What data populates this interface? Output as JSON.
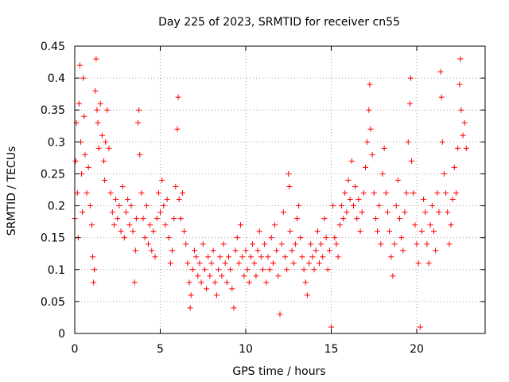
{
  "chart_data": {
    "type": "scatter",
    "title": "Day 225 of 2023, SRMTID for receiver cn55",
    "xlabel": "GPS time / hours",
    "ylabel": "SRMTID / TECUs",
    "xlim": [
      0,
      24
    ],
    "ylim": [
      0,
      0.45
    ],
    "x_ticks": [
      0,
      5,
      10,
      15,
      20
    ],
    "x_tick_labels": [
      "0",
      "5",
      "10",
      "15",
      "20"
    ],
    "y_ticks": [
      0,
      0.05,
      0.1,
      0.15,
      0.2,
      0.25,
      0.3,
      0.35,
      0.4,
      0.45
    ],
    "y_tick_labels": [
      "0",
      "0.05",
      "0.1",
      "0.15",
      "0.2",
      "0.25",
      "0.3",
      "0.35",
      "0.4",
      "0.45"
    ],
    "grid": true,
    "marker": "+",
    "color": "#ff0000",
    "series": [
      {
        "name": "SRMTID",
        "points": [
          [
            0.0,
            0.18
          ],
          [
            0.05,
            0.27
          ],
          [
            0.1,
            0.33
          ],
          [
            0.15,
            0.22
          ],
          [
            0.2,
            0.15
          ],
          [
            0.25,
            0.36
          ],
          [
            0.3,
            0.42
          ],
          [
            0.35,
            0.3
          ],
          [
            0.4,
            0.25
          ],
          [
            0.45,
            0.19
          ],
          [
            0.5,
            0.4
          ],
          [
            0.55,
            0.34
          ],
          [
            0.6,
            0.28
          ],
          [
            0.7,
            0.22
          ],
          [
            0.8,
            0.26
          ],
          [
            0.9,
            0.2
          ],
          [
            1.0,
            0.17
          ],
          [
            1.05,
            0.12
          ],
          [
            1.1,
            0.08
          ],
          [
            1.15,
            0.1
          ],
          [
            1.2,
            0.38
          ],
          [
            1.25,
            0.43
          ],
          [
            1.3,
            0.35
          ],
          [
            1.35,
            0.33
          ],
          [
            1.4,
            0.29
          ],
          [
            1.5,
            0.36
          ],
          [
            1.6,
            0.31
          ],
          [
            1.7,
            0.27
          ],
          [
            1.75,
            0.24
          ],
          [
            1.8,
            0.3
          ],
          [
            1.9,
            0.35
          ],
          [
            2.0,
            0.29
          ],
          [
            2.1,
            0.22
          ],
          [
            2.2,
            0.19
          ],
          [
            2.3,
            0.17
          ],
          [
            2.4,
            0.21
          ],
          [
            2.5,
            0.18
          ],
          [
            2.6,
            0.2
          ],
          [
            2.7,
            0.16
          ],
          [
            2.8,
            0.23
          ],
          [
            2.9,
            0.15
          ],
          [
            3.0,
            0.19
          ],
          [
            3.1,
            0.21
          ],
          [
            3.2,
            0.17
          ],
          [
            3.3,
            0.2
          ],
          [
            3.4,
            0.16
          ],
          [
            3.5,
            0.08
          ],
          [
            3.55,
            0.13
          ],
          [
            3.6,
            0.18
          ],
          [
            3.7,
            0.33
          ],
          [
            3.75,
            0.35
          ],
          [
            3.8,
            0.28
          ],
          [
            3.9,
            0.22
          ],
          [
            4.0,
            0.18
          ],
          [
            4.1,
            0.15
          ],
          [
            4.2,
            0.2
          ],
          [
            4.3,
            0.14
          ],
          [
            4.4,
            0.17
          ],
          [
            4.5,
            0.13
          ],
          [
            4.6,
            0.16
          ],
          [
            4.7,
            0.12
          ],
          [
            4.8,
            0.18
          ],
          [
            4.9,
            0.22
          ],
          [
            5.0,
            0.19
          ],
          [
            5.1,
            0.24
          ],
          [
            5.2,
            0.2
          ],
          [
            5.3,
            0.17
          ],
          [
            5.4,
            0.21
          ],
          [
            5.5,
            0.15
          ],
          [
            5.6,
            0.11
          ],
          [
            5.7,
            0.13
          ],
          [
            5.8,
            0.18
          ],
          [
            5.9,
            0.23
          ],
          [
            6.0,
            0.32
          ],
          [
            6.05,
            0.37
          ],
          [
            6.1,
            0.21
          ],
          [
            6.2,
            0.18
          ],
          [
            6.3,
            0.22
          ],
          [
            6.4,
            0.16
          ],
          [
            6.5,
            0.14
          ],
          [
            6.6,
            0.11
          ],
          [
            6.7,
            0.08
          ],
          [
            6.75,
            0.04
          ],
          [
            6.8,
            0.06
          ],
          [
            6.9,
            0.1
          ],
          [
            7.0,
            0.13
          ],
          [
            7.1,
            0.12
          ],
          [
            7.2,
            0.09
          ],
          [
            7.3,
            0.11
          ],
          [
            7.4,
            0.08
          ],
          [
            7.5,
            0.14
          ],
          [
            7.6,
            0.1
          ],
          [
            7.7,
            0.07
          ],
          [
            7.8,
            0.12
          ],
          [
            7.9,
            0.09
          ],
          [
            8.0,
            0.11
          ],
          [
            8.1,
            0.13
          ],
          [
            8.2,
            0.08
          ],
          [
            8.3,
            0.06
          ],
          [
            8.4,
            0.1
          ],
          [
            8.5,
            0.12
          ],
          [
            8.6,
            0.09
          ],
          [
            8.7,
            0.14
          ],
          [
            8.8,
            0.11
          ],
          [
            8.9,
            0.08
          ],
          [
            9.0,
            0.12
          ],
          [
            9.1,
            0.1
          ],
          [
            9.2,
            0.07
          ],
          [
            9.3,
            0.04
          ],
          [
            9.4,
            0.13
          ],
          [
            9.5,
            0.15
          ],
          [
            9.6,
            0.11
          ],
          [
            9.7,
            0.17
          ],
          [
            9.8,
            0.12
          ],
          [
            9.9,
            0.09
          ],
          [
            10.0,
            0.13
          ],
          [
            10.1,
            0.1
          ],
          [
            10.2,
            0.08
          ],
          [
            10.3,
            0.12
          ],
          [
            10.4,
            0.14
          ],
          [
            10.5,
            0.11
          ],
          [
            10.6,
            0.09
          ],
          [
            10.7,
            0.13
          ],
          [
            10.8,
            0.16
          ],
          [
            10.9,
            0.12
          ],
          [
            11.0,
            0.1
          ],
          [
            11.1,
            0.14
          ],
          [
            11.2,
            0.08
          ],
          [
            11.3,
            0.12
          ],
          [
            11.4,
            0.1
          ],
          [
            11.5,
            0.15
          ],
          [
            11.6,
            0.11
          ],
          [
            11.7,
            0.17
          ],
          [
            11.8,
            0.13
          ],
          [
            11.9,
            0.09
          ],
          [
            12.0,
            0.03
          ],
          [
            12.1,
            0.14
          ],
          [
            12.2,
            0.19
          ],
          [
            12.3,
            0.12
          ],
          [
            12.4,
            0.1
          ],
          [
            12.5,
            0.25
          ],
          [
            12.55,
            0.23
          ],
          [
            12.6,
            0.16
          ],
          [
            12.7,
            0.13
          ],
          [
            12.8,
            0.11
          ],
          [
            12.9,
            0.14
          ],
          [
            13.0,
            0.18
          ],
          [
            13.1,
            0.2
          ],
          [
            13.2,
            0.15
          ],
          [
            13.3,
            0.12
          ],
          [
            13.4,
            0.1
          ],
          [
            13.5,
            0.08
          ],
          [
            13.6,
            0.06
          ],
          [
            13.7,
            0.11
          ],
          [
            13.8,
            0.14
          ],
          [
            13.9,
            0.12
          ],
          [
            14.0,
            0.1
          ],
          [
            14.1,
            0.13
          ],
          [
            14.2,
            0.16
          ],
          [
            14.3,
            0.11
          ],
          [
            14.4,
            0.14
          ],
          [
            14.5,
            0.12
          ],
          [
            14.6,
            0.18
          ],
          [
            14.7,
            0.15
          ],
          [
            14.8,
            0.1
          ],
          [
            14.9,
            0.13
          ],
          [
            15.0,
            0.01
          ],
          [
            15.1,
            0.2
          ],
          [
            15.2,
            0.15
          ],
          [
            15.3,
            0.14
          ],
          [
            15.4,
            0.12
          ],
          [
            15.5,
            0.17
          ],
          [
            15.6,
            0.2
          ],
          [
            15.7,
            0.18
          ],
          [
            15.8,
            0.22
          ],
          [
            15.9,
            0.19
          ],
          [
            16.0,
            0.24
          ],
          [
            16.1,
            0.21
          ],
          [
            16.2,
            0.27
          ],
          [
            16.3,
            0.2
          ],
          [
            16.4,
            0.23
          ],
          [
            16.5,
            0.18
          ],
          [
            16.6,
            0.21
          ],
          [
            16.7,
            0.16
          ],
          [
            16.8,
            0.19
          ],
          [
            16.9,
            0.22
          ],
          [
            17.0,
            0.26
          ],
          [
            17.1,
            0.3
          ],
          [
            17.2,
            0.35
          ],
          [
            17.25,
            0.39
          ],
          [
            17.3,
            0.32
          ],
          [
            17.4,
            0.28
          ],
          [
            17.5,
            0.22
          ],
          [
            17.6,
            0.18
          ],
          [
            17.7,
            0.16
          ],
          [
            17.8,
            0.2
          ],
          [
            17.9,
            0.14
          ],
          [
            18.0,
            0.25
          ],
          [
            18.1,
            0.29
          ],
          [
            18.2,
            0.22
          ],
          [
            18.3,
            0.19
          ],
          [
            18.4,
            0.16
          ],
          [
            18.5,
            0.12
          ],
          [
            18.6,
            0.09
          ],
          [
            18.7,
            0.14
          ],
          [
            18.8,
            0.2
          ],
          [
            18.9,
            0.24
          ],
          [
            19.0,
            0.18
          ],
          [
            19.1,
            0.15
          ],
          [
            19.2,
            0.13
          ],
          [
            19.3,
            0.19
          ],
          [
            19.4,
            0.22
          ],
          [
            19.5,
            0.3
          ],
          [
            19.6,
            0.36
          ],
          [
            19.65,
            0.4
          ],
          [
            19.7,
            0.27
          ],
          [
            19.8,
            0.22
          ],
          [
            19.9,
            0.17
          ],
          [
            20.0,
            0.14
          ],
          [
            20.1,
            0.11
          ],
          [
            20.2,
            0.01
          ],
          [
            20.3,
            0.16
          ],
          [
            20.4,
            0.21
          ],
          [
            20.5,
            0.19
          ],
          [
            20.6,
            0.14
          ],
          [
            20.7,
            0.11
          ],
          [
            20.8,
            0.17
          ],
          [
            20.9,
            0.2
          ],
          [
            21.0,
            0.16
          ],
          [
            21.1,
            0.13
          ],
          [
            21.2,
            0.22
          ],
          [
            21.3,
            0.19
          ],
          [
            21.4,
            0.41
          ],
          [
            21.45,
            0.37
          ],
          [
            21.5,
            0.3
          ],
          [
            21.6,
            0.25
          ],
          [
            21.7,
            0.22
          ],
          [
            21.8,
            0.19
          ],
          [
            21.9,
            0.14
          ],
          [
            22.0,
            0.17
          ],
          [
            22.1,
            0.21
          ],
          [
            22.2,
            0.26
          ],
          [
            22.3,
            0.22
          ],
          [
            22.4,
            0.29
          ],
          [
            22.5,
            0.39
          ],
          [
            22.55,
            0.43
          ],
          [
            22.6,
            0.35
          ],
          [
            22.7,
            0.31
          ],
          [
            22.8,
            0.33
          ],
          [
            22.9,
            0.29
          ]
        ]
      }
    ]
  }
}
